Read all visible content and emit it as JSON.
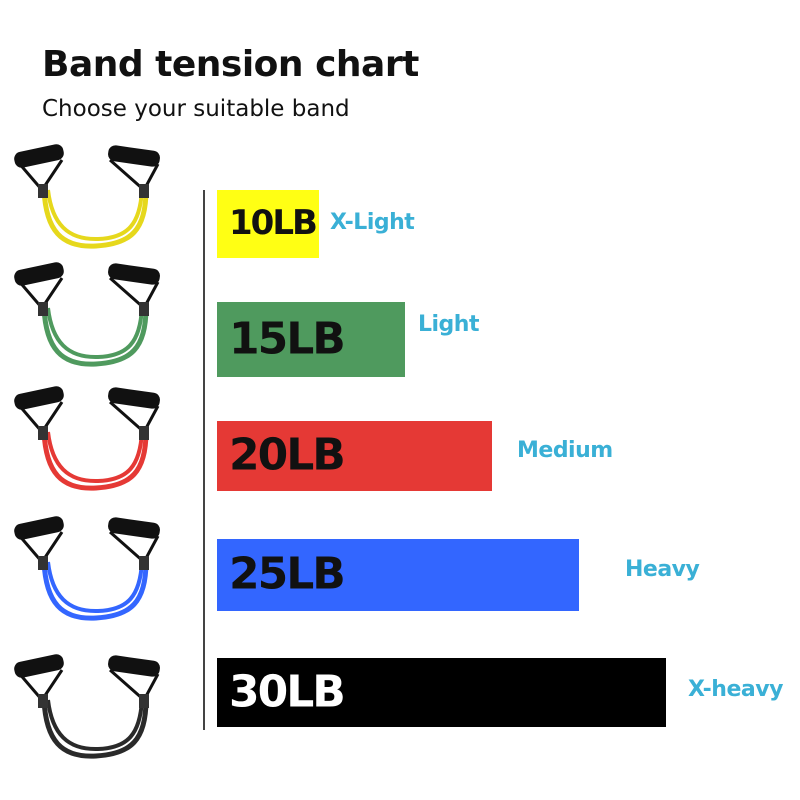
{
  "title": "Band tension chart",
  "subtitle": "Choose your suitable band",
  "chart_data": {
    "type": "bar",
    "orientation": "horizontal",
    "categories": [
      "X-Light",
      "Light",
      "Medium",
      "Heavy",
      "X-heavy"
    ],
    "values": [
      10,
      15,
      20,
      25,
      30
    ],
    "data_labels": [
      "10LB",
      "15LB",
      "20LB",
      "25LB",
      "30LB"
    ],
    "unit": "LB",
    "colors": [
      "#ffff14",
      "#4f9a5e",
      "#e53935",
      "#3366ff",
      "#000000"
    ],
    "label_colors": [
      "#111111",
      "#111111",
      "#111111",
      "#111111",
      "#ffffff"
    ],
    "category_label_color": "#3ab0d6",
    "band_icons": [
      "yellow-resistance-band-icon",
      "green-resistance-band-icon",
      "red-resistance-band-icon",
      "blue-resistance-band-icon",
      "black-resistance-band-icon"
    ],
    "grid": false,
    "legend": "none"
  }
}
